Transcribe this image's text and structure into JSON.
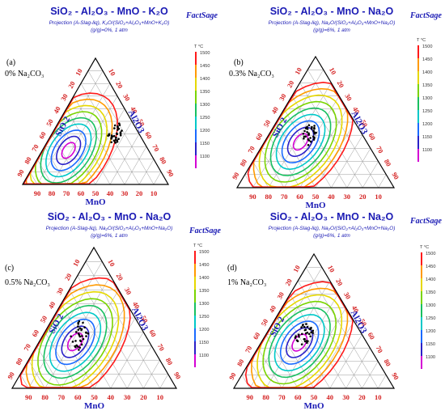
{
  "panels": [
    {
      "id": "a",
      "title": "SiO₂ - Al₂O₃ - MnO - K₂O",
      "subtitle1": "Projection (A-Slag-liq), K₂O/(SiO₂+Al₂O₃+MnO+K₂O)",
      "subtitle2": "(g/g)=0%, 1 atm",
      "label": "(a)",
      "condition": "0% Na₂CO₃"
    },
    {
      "id": "b",
      "title": "SiO₂ - Al₂O₃ - MnO - Na₂O",
      "subtitle1": "Projection (A-Slag-liq), Na₂O/(SiO₂+Al₂O₃+MnO+Na₂O)",
      "subtitle2": "(g/g)=6%, 1 atm",
      "label": "(b)",
      "condition": "0.3% Na₂CO₃"
    },
    {
      "id": "c",
      "title": "SiO₂ - Al₂O₃ - MnO - Na₂O",
      "subtitle1": "Projection (A-Slag-liq), Na₂O/(SiO₂+Al₂O₃+MnO+Na₂O)",
      "subtitle2": "(g/g)=6%, 1 atm",
      "label": "(c)",
      "condition": "0.5% Na₂CO₃"
    },
    {
      "id": "d",
      "title": "SiO₂ - Al₂O₃ - MnO - Na₂O",
      "subtitle1": "Projection (A-Slag-liq), Na₂O/(SiO₂+Al₂O₃+MnO+Na₂O)",
      "subtitle2": "(g/g)=6%, 1 atm",
      "label": "(d)",
      "condition": "1% Na₂CO₃"
    }
  ],
  "logo_text": "FactSage",
  "axes": {
    "left": "SiO 2",
    "right": "Al2O3",
    "bottom": "MnO"
  },
  "ticks": [
    "90",
    "80",
    "70",
    "60",
    "50",
    "40",
    "30",
    "20",
    "10"
  ],
  "legend": {
    "unit": "T °C",
    "labels": [
      "1500",
      "1450",
      "1400",
      "1350",
      "1300",
      "1250",
      "1200",
      "1150",
      "1100"
    ]
  },
  "colors": {
    "title": "#1a1ab4",
    "tick": "#d42020",
    "grid": "#9a9a9a",
    "isotherms": [
      "#ff1a1a",
      "#ff9a00",
      "#e6d800",
      "#7ad400",
      "#18c060",
      "#00c8c8",
      "#1a6aff",
      "#2a20c8",
      "#d400d4"
    ]
  }
}
